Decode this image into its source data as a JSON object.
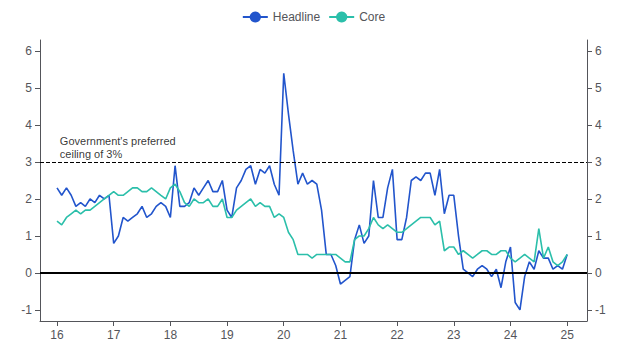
{
  "chart_data": {
    "type": "line",
    "legend": "top",
    "grid": false,
    "xlim": [
      15.7,
      25.35
    ],
    "xticks": [
      16,
      17,
      18,
      19,
      20,
      21,
      22,
      23,
      24,
      25
    ],
    "ylim": [
      -1.3,
      6.3
    ],
    "yticks": [
      -1,
      0,
      1,
      2,
      3,
      4,
      5,
      6
    ],
    "y2lim": [
      -1.3,
      6.3
    ],
    "y2ticks": [
      -1,
      0,
      1,
      2,
      3,
      4,
      5,
      6
    ],
    "x": [
      16.0,
      16.083,
      16.167,
      16.25,
      16.333,
      16.417,
      16.5,
      16.583,
      16.667,
      16.75,
      16.833,
      16.917,
      17.0,
      17.083,
      17.167,
      17.25,
      17.333,
      17.417,
      17.5,
      17.583,
      17.667,
      17.75,
      17.833,
      17.917,
      18.0,
      18.083,
      18.167,
      18.25,
      18.333,
      18.417,
      18.5,
      18.583,
      18.667,
      18.75,
      18.833,
      18.917,
      19.0,
      19.083,
      19.167,
      19.25,
      19.333,
      19.417,
      19.5,
      19.583,
      19.667,
      19.75,
      19.833,
      19.917,
      20.0,
      20.083,
      20.167,
      20.25,
      20.333,
      20.417,
      20.5,
      20.583,
      20.667,
      20.75,
      20.833,
      20.917,
      21.0,
      21.083,
      21.167,
      21.25,
      21.333,
      21.417,
      21.5,
      21.583,
      21.667,
      21.75,
      21.833,
      21.917,
      22.0,
      22.083,
      22.167,
      22.25,
      22.333,
      22.417,
      22.5,
      22.583,
      22.667,
      22.75,
      22.833,
      22.917,
      23.0,
      23.083,
      23.167,
      23.25,
      23.333,
      23.417,
      23.5,
      23.583,
      23.667,
      23.75,
      23.833,
      23.917,
      24.0,
      24.083,
      24.167,
      24.25,
      24.333,
      24.417,
      24.5,
      24.583,
      24.667,
      24.75,
      24.833,
      24.917,
      25.0
    ],
    "series": [
      {
        "name": "Headline",
        "color": "#2255CC",
        "values": [
          2.3,
          2.1,
          2.3,
          2.1,
          1.8,
          1.9,
          1.8,
          2.0,
          1.9,
          2.1,
          2.0,
          2.1,
          0.8,
          1.0,
          1.5,
          1.4,
          1.5,
          1.6,
          1.8,
          1.5,
          1.6,
          1.8,
          1.9,
          1.8,
          1.5,
          2.9,
          1.8,
          1.8,
          1.9,
          2.3,
          2.1,
          2.3,
          2.5,
          2.2,
          2.2,
          2.5,
          1.7,
          1.5,
          2.3,
          2.5,
          2.8,
          2.9,
          2.4,
          2.8,
          2.7,
          2.9,
          2.4,
          2.1,
          5.4,
          4.3,
          3.3,
          2.4,
          2.7,
          2.4,
          2.5,
          2.4,
          1.7,
          0.5,
          0.5,
          0.2,
          -0.3,
          -0.2,
          -0.1,
          0.9,
          1.3,
          0.8,
          1.0,
          2.5,
          1.5,
          1.5,
          2.3,
          2.8,
          0.9,
          0.9,
          1.5,
          2.5,
          2.6,
          2.5,
          2.7,
          2.7,
          2.1,
          2.8,
          1.6,
          2.1,
          2.1,
          1.0,
          0.1,
          0.0,
          -0.1,
          0.1,
          0.2,
          0.1,
          -0.1,
          0.1,
          -0.4,
          0.3,
          0.7,
          -0.8,
          -1.0,
          -0.1,
          0.3,
          0.1,
          0.6,
          0.4,
          0.4,
          0.1,
          0.2,
          0.1,
          0.5
        ]
      },
      {
        "name": "Core",
        "color": "#2BBFAA",
        "values": [
          1.4,
          1.3,
          1.5,
          1.6,
          1.7,
          1.6,
          1.7,
          1.7,
          1.8,
          1.9,
          2.0,
          2.1,
          2.2,
          2.1,
          2.1,
          2.2,
          2.3,
          2.3,
          2.2,
          2.2,
          2.3,
          2.2,
          2.1,
          2.0,
          2.3,
          2.4,
          2.2,
          1.9,
          1.8,
          2.0,
          1.9,
          1.9,
          2.0,
          1.8,
          1.8,
          2.0,
          1.5,
          1.5,
          1.7,
          1.8,
          1.9,
          2.0,
          1.8,
          1.9,
          1.8,
          1.8,
          1.5,
          1.6,
          1.5,
          1.1,
          0.9,
          0.5,
          0.5,
          0.5,
          0.4,
          0.5,
          0.5,
          0.5,
          0.5,
          0.5,
          0.4,
          0.3,
          0.3,
          0.9,
          1.0,
          1.0,
          1.2,
          1.5,
          1.3,
          1.2,
          1.3,
          1.2,
          1.1,
          1.1,
          1.2,
          1.3,
          1.4,
          1.5,
          1.5,
          1.5,
          1.3,
          1.4,
          0.6,
          0.7,
          0.7,
          0.5,
          0.6,
          0.5,
          0.4,
          0.5,
          0.6,
          0.6,
          0.5,
          0.5,
          0.6,
          0.6,
          0.4,
          0.3,
          0.4,
          0.5,
          0.4,
          0.3,
          1.2,
          0.4,
          0.7,
          0.3,
          0.2,
          0.3,
          0.5
        ]
      }
    ],
    "hlines": [
      {
        "y": 0,
        "color": "#000000",
        "line_style": "solid"
      },
      {
        "y": 3,
        "color": "#000000",
        "line_style": "dashed"
      }
    ],
    "annotations": [
      {
        "text": "Government's preferred\nceiling of 3%",
        "x": 16.05,
        "y": 3.75
      }
    ]
  }
}
